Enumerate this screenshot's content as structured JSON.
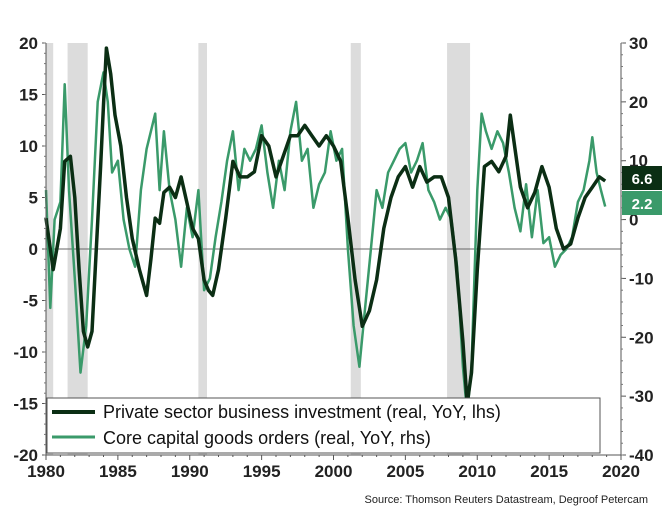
{
  "chart_data": {
    "type": "line",
    "title": "",
    "source": "Source: Thomson Reuters Datastream, Degroof Petercam",
    "xlim": [
      1980,
      2020
    ],
    "x_ticks": [
      "1980",
      "1985",
      "1990",
      "1995",
      "2000",
      "2005",
      "2010",
      "2015",
      "2020"
    ],
    "ylim_left": [
      -20,
      20
    ],
    "y_ticks_left": [
      "20",
      "15",
      "10",
      "5",
      "0",
      "-5",
      "-10",
      "-15",
      "-20"
    ],
    "ylim_right": [
      -40,
      30
    ],
    "y_ticks_right": [
      "30",
      "20",
      "10",
      "0",
      "-10",
      "-20",
      "-30",
      "-40"
    ],
    "legend_position": "bottom",
    "recessions": [
      [
        1980.0,
        1980.5
      ],
      [
        1981.5,
        1982.9
      ],
      [
        1990.6,
        1991.2
      ],
      [
        2001.2,
        2001.9
      ],
      [
        2007.9,
        2009.5
      ]
    ],
    "colors": {
      "investment": "#0b2e14",
      "orders": "#3a9a6a",
      "recession": "#dcdcdc",
      "zero_line": "#666666"
    },
    "series": [
      {
        "name": "Private sector business investment (real, YoY, lhs)",
        "axis": "left",
        "last_value": "6.6",
        "x": [
          1980.0,
          1980.5,
          1981.0,
          1981.3,
          1981.7,
          1982.0,
          1982.3,
          1982.6,
          1982.9,
          1983.2,
          1983.5,
          1983.8,
          1984.0,
          1984.2,
          1984.5,
          1984.8,
          1985.2,
          1985.6,
          1986.0,
          1986.5,
          1987.0,
          1987.3,
          1987.6,
          1987.9,
          1988.2,
          1988.6,
          1989.0,
          1989.4,
          1989.8,
          1990.2,
          1990.6,
          1991.0,
          1991.3,
          1991.6,
          1992.0,
          1992.5,
          1993.0,
          1993.5,
          1994.0,
          1994.5,
          1995.0,
          1995.5,
          1996.0,
          1996.5,
          1997.0,
          1997.5,
          1998.0,
          1998.5,
          1999.0,
          1999.5,
          2000.0,
          2000.5,
          2001.0,
          2001.5,
          2002.0,
          2002.5,
          2003.0,
          2003.5,
          2004.0,
          2004.5,
          2005.0,
          2005.5,
          2006.0,
          2006.5,
          2007.0,
          2007.5,
          2008.0,
          2008.5,
          2009.0,
          2009.3,
          2009.6,
          2010.0,
          2010.5,
          2011.0,
          2011.5,
          2012.0,
          2012.3,
          2012.6,
          2013.0,
          2013.5,
          2014.0,
          2014.5,
          2015.0,
          2015.5,
          2016.0,
          2016.5,
          2017.0,
          2017.5,
          2018.0,
          2018.5,
          2018.9
        ],
        "y": [
          3,
          -2,
          2,
          8.5,
          9,
          5,
          -2,
          -8,
          -9.5,
          -8,
          0,
          8,
          14,
          19.5,
          17,
          13,
          10,
          5,
          1,
          -2,
          -4.5,
          -1,
          3,
          2.5,
          5.5,
          6,
          5,
          7,
          4.5,
          2,
          1,
          -3,
          -4,
          -4.5,
          -2,
          3,
          8.5,
          7,
          7,
          7.5,
          11,
          10,
          7,
          9,
          11,
          11,
          12,
          11,
          10,
          11,
          10,
          8.5,
          3,
          -3,
          -7.5,
          -6,
          -3,
          2,
          5,
          7,
          8,
          6,
          8,
          6.5,
          7,
          7,
          5,
          -1,
          -9,
          -15,
          -12,
          -2,
          8,
          8.5,
          7.5,
          9,
          13,
          10,
          6,
          4,
          5.5,
          8,
          6,
          2,
          0,
          0.5,
          3,
          5,
          6,
          7,
          6.6
        ]
      },
      {
        "name": "Core capital goods orders (real, YoY, rhs)",
        "axis": "right",
        "last_value": "2.2",
        "x": [
          1980.0,
          1980.3,
          1980.6,
          1981.0,
          1981.3,
          1981.6,
          1982.0,
          1982.4,
          1982.8,
          1983.2,
          1983.6,
          1984.0,
          1984.3,
          1984.6,
          1985.0,
          1985.4,
          1985.8,
          1986.2,
          1986.6,
          1987.0,
          1987.3,
          1987.6,
          1987.9,
          1988.2,
          1988.6,
          1989.0,
          1989.4,
          1989.8,
          1990.2,
          1990.6,
          1991.0,
          1991.4,
          1991.8,
          1992.2,
          1992.6,
          1993.0,
          1993.4,
          1993.8,
          1994.2,
          1994.6,
          1995.0,
          1995.4,
          1995.8,
          1996.2,
          1996.6,
          1997.0,
          1997.4,
          1997.8,
          1998.2,
          1998.6,
          1999.0,
          1999.4,
          1999.8,
          2000.2,
          2000.6,
          2001.0,
          2001.4,
          2001.8,
          2002.2,
          2002.6,
          2003.0,
          2003.4,
          2003.8,
          2004.2,
          2004.6,
          2005.0,
          2005.4,
          2005.8,
          2006.2,
          2006.6,
          2007.0,
          2007.4,
          2007.8,
          2008.2,
          2008.6,
          2009.0,
          2009.3,
          2009.6,
          2010.0,
          2010.3,
          2010.6,
          2011.0,
          2011.4,
          2011.8,
          2012.2,
          2012.6,
          2013.0,
          2013.4,
          2013.8,
          2014.2,
          2014.6,
          2015.0,
          2015.4,
          2015.8,
          2016.2,
          2016.6,
          2017.0,
          2017.4,
          2017.8,
          2018.0,
          2018.3,
          2018.6,
          2018.9
        ],
        "y": [
          5,
          -15,
          0,
          3,
          23,
          5,
          -10,
          -26,
          -18,
          0,
          20,
          25,
          20,
          8,
          10,
          0,
          -5,
          -8,
          5,
          12,
          15,
          18,
          5,
          15,
          5,
          0,
          -8,
          2,
          -3,
          5,
          -12,
          -10,
          -3,
          3,
          10,
          15,
          5,
          12,
          10,
          12,
          16,
          8,
          2,
          10,
          5,
          15,
          20,
          10,
          12,
          2,
          6,
          8,
          15,
          10,
          12,
          -5,
          -18,
          -25,
          -15,
          -5,
          5,
          2,
          8,
          10,
          12,
          13,
          8,
          10,
          13,
          5,
          3,
          0,
          2,
          0,
          -8,
          -25,
          -33,
          -25,
          5,
          18,
          15,
          12,
          15,
          13,
          8,
          2,
          -2,
          6,
          -3,
          5,
          -4,
          -3,
          -8,
          -6,
          -5,
          -3,
          3,
          5,
          10,
          14,
          8,
          5,
          2.2
        ]
      }
    ]
  }
}
